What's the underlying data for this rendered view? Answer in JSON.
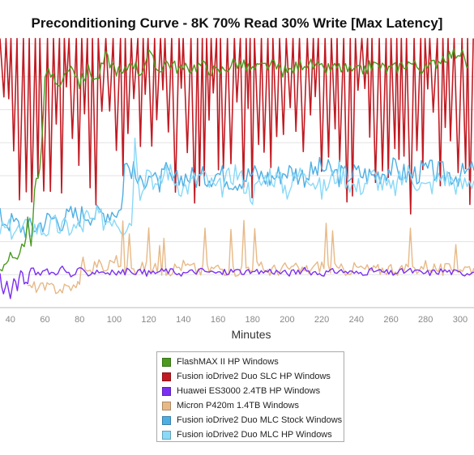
{
  "title": "Preconditioning Curve - 8K 70% Read 30% Write [Max Latency]",
  "chart_data": {
    "type": "line",
    "title": "Preconditioning Curve - 8K 70% Read 30% Write [Max Latency]",
    "xlabel": "Minutes",
    "ylabel": "",
    "xlim": [
      34,
      308
    ],
    "ylim": [
      0,
      10
    ],
    "x_ticks": [
      "40",
      "60",
      "80",
      "100",
      "120",
      "140",
      "160",
      "180",
      "200",
      "220",
      "240",
      "260",
      "280",
      "300"
    ],
    "grid": true,
    "legend_position": "bottom",
    "series": [
      {
        "name": "FlashMAX II HP Windows",
        "color": "#4a9a1e",
        "points": [
          [
            34,
            1.5
          ],
          [
            40,
            1.9
          ],
          [
            44,
            1.6
          ],
          [
            48,
            2.5
          ],
          [
            50,
            3.2
          ],
          [
            52,
            2.1
          ],
          [
            54,
            4.6
          ],
          [
            56,
            4.8
          ],
          [
            58,
            6.2
          ],
          [
            60,
            8.7
          ],
          [
            62,
            9.1
          ],
          [
            66,
            8.4
          ],
          [
            70,
            8.6
          ],
          [
            75,
            9.3
          ],
          [
            80,
            8.5
          ],
          [
            85,
            9.0
          ],
          [
            90,
            8.6
          ],
          [
            95,
            9.5
          ],
          [
            100,
            9.1
          ],
          [
            105,
            8.8
          ],
          [
            110,
            9.4
          ],
          [
            115,
            8.9
          ],
          [
            120,
            9.6
          ],
          [
            125,
            9.0
          ],
          [
            130,
            9.3
          ],
          [
            140,
            9.0
          ],
          [
            150,
            9.2
          ],
          [
            160,
            8.9
          ],
          [
            170,
            9.3
          ],
          [
            180,
            9.0
          ],
          [
            190,
            9.2
          ],
          [
            200,
            8.9
          ],
          [
            210,
            9.3
          ],
          [
            220,
            9.0
          ],
          [
            230,
            9.1
          ],
          [
            240,
            8.9
          ],
          [
            250,
            9.2
          ],
          [
            260,
            9.0
          ],
          [
            270,
            9.3
          ],
          [
            280,
            9.0
          ],
          [
            290,
            9.5
          ],
          [
            300,
            9.7
          ],
          [
            305,
            9.1
          ]
        ]
      },
      {
        "name": "Fusion ioDrive2 Duo SLC HP Windows",
        "color": "#c11a22",
        "peak": 10,
        "floor": 3.5,
        "x_start": 34,
        "x_end": 308
      },
      {
        "name": "Huawei ES3000 2.4TB HP Windows",
        "color": "#7b2ff2",
        "points": [
          [
            34,
            1.3
          ],
          [
            36,
            0.5
          ],
          [
            38,
            1.1
          ],
          [
            40,
            0.4
          ],
          [
            42,
            1.2
          ],
          [
            44,
            0.6
          ],
          [
            46,
            1.4
          ],
          [
            48,
            1.0
          ],
          [
            50,
            0.9
          ],
          [
            52,
            1.5
          ],
          [
            56,
            1.3
          ],
          [
            60,
            1.4
          ],
          [
            65,
            1.3
          ],
          [
            70,
            1.5
          ],
          [
            75,
            1.2
          ],
          [
            80,
            1.4
          ],
          [
            85,
            1.3
          ],
          [
            90,
            1.4
          ],
          [
            100,
            1.3
          ],
          [
            110,
            1.4
          ],
          [
            120,
            1.3
          ],
          [
            130,
            1.4
          ],
          [
            140,
            1.3
          ],
          [
            150,
            1.4
          ],
          [
            160,
            1.3
          ],
          [
            170,
            1.4
          ],
          [
            180,
            1.3
          ],
          [
            190,
            1.4
          ],
          [
            200,
            1.3
          ],
          [
            210,
            1.4
          ],
          [
            220,
            1.3
          ],
          [
            230,
            1.4
          ],
          [
            240,
            1.3
          ],
          [
            250,
            1.4
          ],
          [
            260,
            1.3
          ],
          [
            270,
            1.4
          ],
          [
            280,
            1.3
          ],
          [
            290,
            1.4
          ],
          [
            300,
            1.3
          ],
          [
            308,
            1.35
          ]
        ]
      },
      {
        "name": "Micron P420m 1.4TB Windows",
        "color": "#e7b987",
        "points": [
          [
            50,
            0.7
          ],
          [
            55,
            0.8
          ],
          [
            60,
            0.7
          ],
          [
            65,
            0.75
          ],
          [
            70,
            0.7
          ],
          [
            75,
            0.8
          ],
          [
            78,
            0.7
          ],
          [
            80,
            1.1
          ],
          [
            82,
            1.8
          ],
          [
            86,
            1.3
          ],
          [
            90,
            1.7
          ],
          [
            95,
            1.4
          ],
          [
            100,
            1.9
          ],
          [
            105,
            1.5
          ],
          [
            110,
            1.4
          ],
          [
            115,
            1.6
          ],
          [
            120,
            1.5
          ],
          [
            130,
            1.4
          ],
          [
            140,
            1.6
          ],
          [
            150,
            1.4
          ],
          [
            160,
            1.5
          ],
          [
            170,
            1.4
          ],
          [
            180,
            1.6
          ],
          [
            190,
            1.4
          ],
          [
            200,
            1.5
          ],
          [
            210,
            1.4
          ],
          [
            220,
            1.6
          ],
          [
            230,
            1.4
          ],
          [
            240,
            1.5
          ],
          [
            250,
            1.4
          ],
          [
            260,
            1.5
          ],
          [
            270,
            1.4
          ],
          [
            280,
            1.6
          ],
          [
            290,
            1.4
          ],
          [
            300,
            1.5
          ],
          [
            308,
            1.5
          ]
        ]
      },
      {
        "name": "Fusion ioDrive2 Duo MLC Stock Windows",
        "color": "#4eaee3",
        "points": [
          [
            34,
            3.4
          ],
          [
            50,
            3.0
          ],
          [
            55,
            3.1
          ],
          [
            60,
            3.3
          ],
          [
            65,
            3.4
          ],
          [
            70,
            3.3
          ],
          [
            75,
            3.5
          ],
          [
            80,
            3.5
          ],
          [
            85,
            3.6
          ],
          [
            90,
            3.5
          ],
          [
            95,
            3.6
          ],
          [
            100,
            3.7
          ],
          [
            104,
            3.7
          ],
          [
            106,
            5.4
          ],
          [
            110,
            5.3
          ],
          [
            115,
            4.6
          ],
          [
            120,
            5.2
          ],
          [
            125,
            4.6
          ],
          [
            130,
            5.1
          ],
          [
            135,
            4.7
          ],
          [
            140,
            5.0
          ],
          [
            150,
            4.9
          ],
          [
            160,
            5.1
          ],
          [
            170,
            4.8
          ],
          [
            180,
            5.1
          ],
          [
            190,
            4.9
          ],
          [
            200,
            5.2
          ],
          [
            210,
            5.0
          ],
          [
            220,
            5.3
          ],
          [
            230,
            5.0
          ],
          [
            240,
            5.1
          ],
          [
            250,
            5.0
          ],
          [
            260,
            5.3
          ],
          [
            270,
            5.0
          ],
          [
            280,
            5.2
          ],
          [
            290,
            5.1
          ],
          [
            300,
            5.0
          ],
          [
            308,
            5.2
          ]
        ]
      },
      {
        "name": "Fusion ioDrive2 Duo MLC HP Windows",
        "color": "#8ad9f7",
        "points": [
          [
            34,
            3.0
          ],
          [
            38,
            2.9
          ],
          [
            42,
            3.0
          ],
          [
            46,
            2.9
          ],
          [
            50,
            3.0
          ],
          [
            54,
            3.05
          ],
          [
            58,
            2.95
          ],
          [
            62,
            3.0
          ],
          [
            66,
            3.1
          ],
          [
            70,
            3.0
          ],
          [
            74,
            3.05
          ],
          [
            78,
            3.0
          ],
          [
            82,
            3.1
          ],
          [
            84,
            3.5
          ],
          [
            86,
            3.2
          ],
          [
            90,
            3.4
          ],
          [
            95,
            3.3
          ],
          [
            100,
            3.5
          ],
          [
            105,
            3.1
          ],
          [
            110,
            3.3
          ],
          [
            112,
            6.3
          ],
          [
            115,
            4.5
          ],
          [
            120,
            5.4
          ],
          [
            125,
            4.4
          ],
          [
            130,
            5.3
          ],
          [
            140,
            4.5
          ],
          [
            150,
            5.0
          ],
          [
            160,
            4.4
          ],
          [
            170,
            5.2
          ],
          [
            180,
            4.3
          ],
          [
            190,
            5.1
          ],
          [
            200,
            4.5
          ],
          [
            210,
            5.3
          ],
          [
            220,
            4.4
          ],
          [
            230,
            5.2
          ],
          [
            240,
            4.5
          ],
          [
            250,
            5.0
          ],
          [
            260,
            4.4
          ],
          [
            270,
            5.1
          ],
          [
            280,
            4.5
          ],
          [
            290,
            5.0
          ],
          [
            300,
            4.6
          ],
          [
            308,
            4.8
          ]
        ]
      }
    ]
  }
}
